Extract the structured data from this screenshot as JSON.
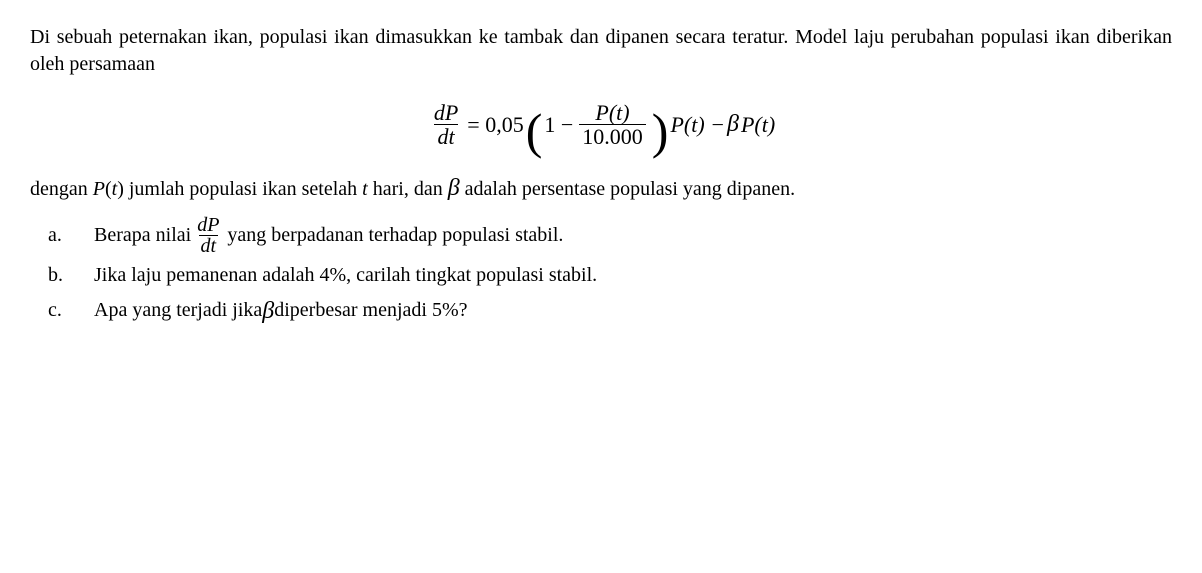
{
  "para1": "Di sebuah peternakan ikan, populasi ikan dimasukkan ke tambak dan dipanen secara teratur. Model laju perubahan populasi ikan diberikan oleh persamaan",
  "equation": {
    "lhs_num": "dP",
    "lhs_den": "dt",
    "eq": " = 0,05",
    "lparen": "(",
    "one_minus": "1 −",
    "inner_num": "P(t)",
    "inner_den": "10.000",
    "rparen": ")",
    "tail": "P(t) − ",
    "beta": "β",
    "tail2": "P(t)"
  },
  "para2_a": "dengan ",
  "para2_b": "P",
  "para2_c": "(",
  "para2_d": "t",
  "para2_e": ") jumlah populasi ikan setelah ",
  "para2_f": "t",
  "para2_g": " hari, dan ",
  "para2_h": "β",
  "para2_i": "  adalah persentase populasi yang dipanen.",
  "items": {
    "a": {
      "letter": "a.",
      "t1": "Berapa nilai ",
      "frac_num": "dP",
      "frac_den": "dt",
      "t2": " yang berpadanan terhadap populasi stabil."
    },
    "b": {
      "letter": "b.",
      "text": "Jika laju pemanenan adalah 4%, carilah tingkat populasi stabil."
    },
    "c": {
      "letter": "c.",
      "t1": "Apa yang terjadi jika ",
      "beta": "β",
      "t2": "  diperbesar menjadi 5%?"
    }
  }
}
